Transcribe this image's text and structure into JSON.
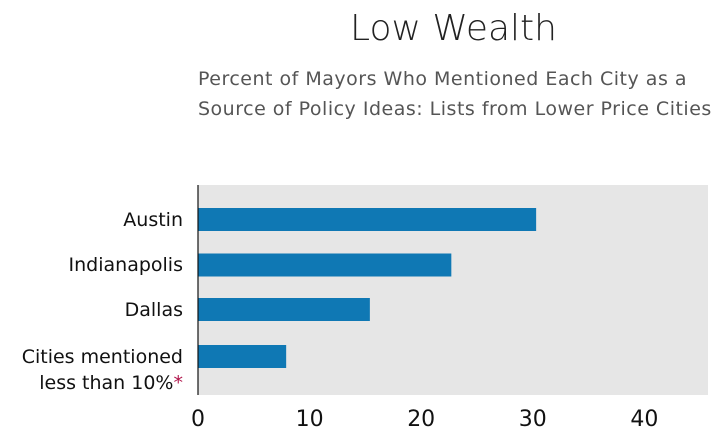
{
  "chart_data": {
    "type": "bar",
    "orientation": "horizontal",
    "title": "Low Wealth",
    "subtitle": "Percent of Mayors Who Mentioned Each City as a Source of Policy Ideas: Lists from Lower Price Cities",
    "categories": [
      "Austin",
      "Indianapolis",
      "Dallas",
      "Cities mentioned less than 10%"
    ],
    "category_marker": "*",
    "marker_color": "#b0144a",
    "marker_category": 3,
    "values": [
      30.3,
      22.7,
      15.4,
      7.9
    ],
    "color": "#0f78b4",
    "background": "#e6e6e6",
    "xlim": [
      0,
      45.7
    ],
    "xticks": [
      0,
      10,
      20,
      30,
      40
    ],
    "grid": false
  }
}
